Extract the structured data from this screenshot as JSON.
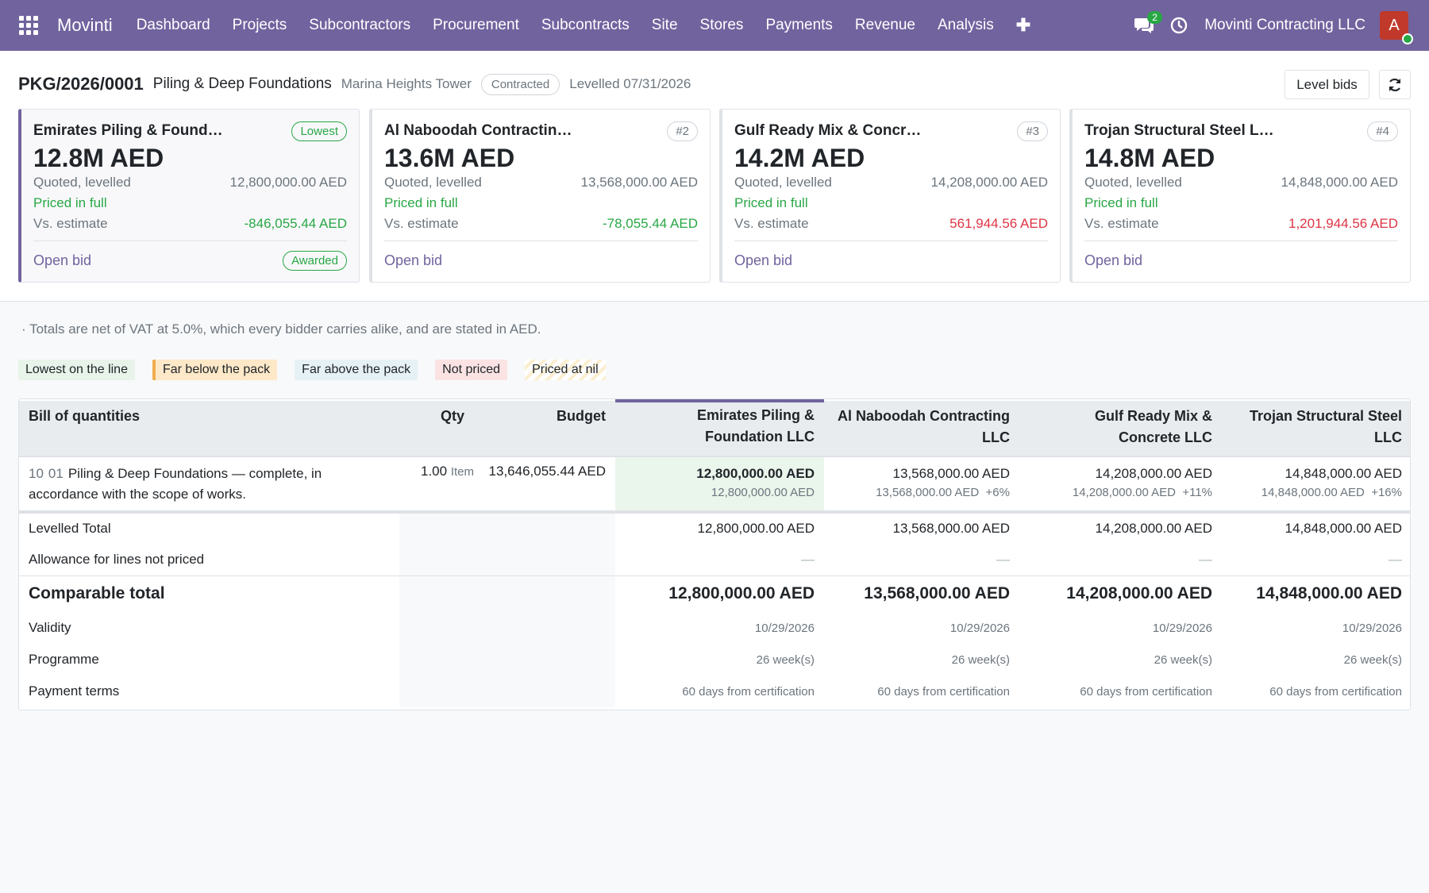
{
  "nav": {
    "brand": "Movinti",
    "menu": [
      "Dashboard",
      "Projects",
      "Subcontractors",
      "Procurement",
      "Subcontracts",
      "Site",
      "Stores",
      "Payments",
      "Revenue",
      "Analysis"
    ],
    "plus": "✚",
    "chat_count": "2",
    "company": "Movinti Contracting LLC",
    "avatar_letter": "A"
  },
  "header": {
    "ref": "PKG/2026/0001",
    "name": "Piling & Deep Foundations",
    "project": "Marina Heights Tower",
    "state": "Contracted",
    "levelled": "Levelled 07/31/2026",
    "level_button": "Level bids"
  },
  "cards": [
    {
      "name": "Emirates Piling & Found…",
      "badge": "Lowest",
      "amount": "12.8M AED",
      "quoted_label": "Quoted, levelled",
      "quoted": "12,800,000.00 AED",
      "status": "Priced in full",
      "vs_label": "Vs. estimate",
      "vs": "-846,055.44 AED",
      "link": "Open bid",
      "awarded": "Awarded"
    },
    {
      "name": "Al Naboodah Contractin…",
      "badge": "#2",
      "amount": "13.6M AED",
      "quoted_label": "Quoted, levelled",
      "quoted": "13,568,000.00 AED",
      "status": "Priced in full",
      "vs_label": "Vs. estimate",
      "vs": "-78,055.44 AED",
      "link": "Open bid"
    },
    {
      "name": "Gulf Ready Mix & Concr…",
      "badge": "#3",
      "amount": "14.2M AED",
      "quoted_label": "Quoted, levelled",
      "quoted": "14,208,000.00 AED",
      "status": "Priced in full",
      "vs_label": "Vs. estimate",
      "vs": "561,944.56 AED",
      "link": "Open bid"
    },
    {
      "name": "Trojan Structural Steel L…",
      "badge": "#4",
      "amount": "14.8M AED",
      "quoted_label": "Quoted, levelled",
      "quoted": "14,848,000.00 AED",
      "status": "Priced in full",
      "vs_label": "Vs. estimate",
      "vs": "1,201,944.56 AED",
      "link": "Open bid"
    }
  ],
  "note": "·  Totals are net of VAT at 5.0%, which every bidder carries alike, and are stated in AED.",
  "legend": [
    "Lowest on the line",
    "Far below the pack",
    "Far above the pack",
    "Not priced",
    "Priced at nil"
  ],
  "table": {
    "headers": {
      "boq": "Bill of quantities",
      "qty": "Qty",
      "budget": "Budget",
      "bidders": [
        "Emirates Piling & Foundation LLC",
        "Al Naboodah Contracting LLC",
        "Gulf Ready Mix & Concrete LLC",
        "Trojan Structural Steel LLC"
      ]
    },
    "line": {
      "section": "10",
      "code": "01",
      "description": "Piling & Deep Foundations — complete, in accordance with the scope of works.",
      "qty": "1.00",
      "unit": "Item",
      "budget": "13,646,055.44 AED",
      "bids": [
        {
          "main": "12,800,000.00 AED",
          "sub": "12,800,000.00 AED",
          "delta": ""
        },
        {
          "main": "13,568,000.00 AED",
          "sub": "13,568,000.00 AED",
          "delta": "+6%"
        },
        {
          "main": "14,208,000.00 AED",
          "sub": "14,208,000.00 AED",
          "delta": "+11%"
        },
        {
          "main": "14,848,000.00 AED",
          "sub": "14,848,000.00 AED",
          "delta": "+16%"
        }
      ]
    },
    "levelled_total": {
      "label": "Levelled Total",
      "values": [
        "12,800,000.00 AED",
        "13,568,000.00 AED",
        "14,208,000.00 AED",
        "14,848,000.00 AED"
      ]
    },
    "allowance": {
      "label": "Allowance for lines not priced",
      "values": [
        "—",
        "—",
        "—",
        "—"
      ]
    },
    "comparable": {
      "label": "Comparable total",
      "values": [
        "12,800,000.00 AED",
        "13,568,000.00 AED",
        "14,208,000.00 AED",
        "14,848,000.00 AED"
      ]
    },
    "validity": {
      "label": "Validity",
      "values": [
        "10/29/2026",
        "10/29/2026",
        "10/29/2026",
        "10/29/2026"
      ]
    },
    "programme": {
      "label": "Programme",
      "values": [
        "26 week(s)",
        "26 week(s)",
        "26 week(s)",
        "26 week(s)"
      ]
    },
    "payment": {
      "label": "Payment terms",
      "values": [
        "60 days from certification",
        "60 days from certification",
        "60 days from certification",
        "60 days from certification"
      ]
    }
  },
  "colors": {
    "brand": "#71639e",
    "success": "#28a745",
    "danger": "#dc3545"
  }
}
